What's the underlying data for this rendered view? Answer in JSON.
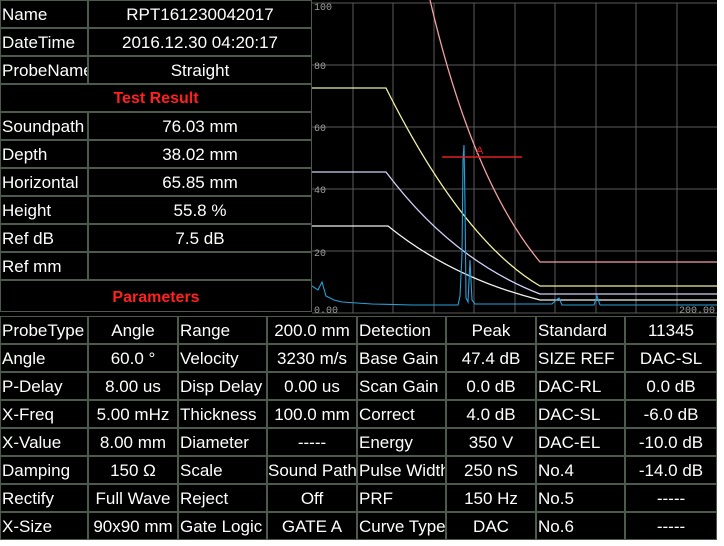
{
  "info": {
    "rows_top": [
      {
        "label": "Name",
        "value": "RPT161230042017"
      },
      {
        "label": "DateTime",
        "value": "2016.12.30  04:20:17"
      },
      {
        "label": "ProbeName",
        "value": "Straight"
      }
    ],
    "test_result_title": "Test Result",
    "rows_result": [
      {
        "label": "Soundpath",
        "value": "76.03 mm"
      },
      {
        "label": "Depth",
        "value": "38.02 mm"
      },
      {
        "label": "Horizontal",
        "value": "65.85 mm"
      },
      {
        "label": "Height",
        "value": "55.8 %"
      },
      {
        "label": "Ref dB",
        "value": "7.5 dB"
      },
      {
        "label": "Ref mm",
        "value": ""
      }
    ],
    "parameters_title": "Parameters"
  },
  "waveform": {
    "y_ticks": [
      "100",
      "80",
      "60",
      "40",
      "20"
    ],
    "x_start": "0.00",
    "x_end": "200.00",
    "gate_label": "A",
    "colors": {
      "grid": "#5a5a5a",
      "echo": "#2aa0d8",
      "gate": "#e02020",
      "dac_el": "#f2a0a0",
      "dac_sl": "#f0f0a0",
      "dac_rl": "#d0d0f8",
      "dac_base": "#f0f0f0"
    }
  },
  "params": [
    [
      "ProbeType",
      "Angle",
      "Range",
      "200.0 mm",
      "Detection",
      "Peak",
      "Standard",
      "11345"
    ],
    [
      "Angle",
      "60.0 °",
      "Velocity",
      "3230 m/s",
      "Base Gain",
      "47.4 dB",
      "SIZE REF",
      "DAC-SL"
    ],
    [
      "P-Delay",
      "8.00 us",
      "Disp Delay",
      "0.00 us",
      "Scan Gain",
      "0.0 dB",
      "DAC-RL",
      "0.0 dB"
    ],
    [
      "X-Freq",
      "5.00 mHz",
      "Thickness",
      "100.0 mm",
      "Correct",
      "4.0 dB",
      "DAC-SL",
      "-6.0 dB"
    ],
    [
      "X-Value",
      "8.00 mm",
      "Diameter",
      "-----",
      "Energy",
      "350 V",
      "DAC-EL",
      "-10.0 dB"
    ],
    [
      "Damping",
      "150 Ω",
      "Scale",
      "Sound Path",
      "Pulse Width",
      "250 nS",
      "No.4",
      "-14.0 dB"
    ],
    [
      "Rectify",
      "Full Wave",
      "Reject",
      "Off",
      "PRF",
      "150 Hz",
      "No.5",
      "-----"
    ],
    [
      "X-Size",
      "90x90 mm",
      "Gate Logic",
      "GATE A",
      "Curve Type",
      "DAC",
      "No.6",
      "-----"
    ]
  ]
}
